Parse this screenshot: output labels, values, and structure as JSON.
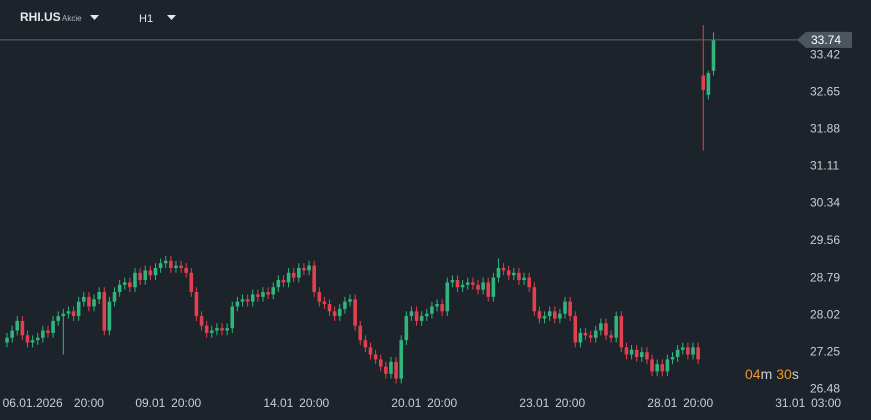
{
  "header": {
    "symbol": "RHI.US",
    "asset_type": "Akcie",
    "timeframe": "H1"
  },
  "timer": {
    "minutes": "04",
    "minutes_unit": "m",
    "seconds": "30",
    "seconds_unit": "s"
  },
  "chart_data": {
    "type": "candlestick",
    "up_color": "#2fb57d",
    "down_color": "#e2404f",
    "last_price": 33.74,
    "ylim": [
      26.36,
      34.57
    ],
    "yticks": [
      26.48,
      27.25,
      28.02,
      28.79,
      29.56,
      30.34,
      31.11,
      31.88,
      32.65,
      33.42
    ],
    "xlim": [
      -1.37,
      154.9
    ],
    "xticks": [
      {
        "value": 5,
        "label": "06.01.2026"
      },
      {
        "value": 16,
        "label": "20:00"
      },
      {
        "value": 28,
        "label": "09.01"
      },
      {
        "value": 35,
        "label": "20:00"
      },
      {
        "value": 53,
        "label": "14.01"
      },
      {
        "value": 60,
        "label": "20:00"
      },
      {
        "value": 78,
        "label": "20.01"
      },
      {
        "value": 85,
        "label": "20:00"
      },
      {
        "value": 103,
        "label": "23.01"
      },
      {
        "value": 110,
        "label": "20:00"
      },
      {
        "value": 128,
        "label": "28.01"
      },
      {
        "value": 135,
        "label": "20:00"
      },
      {
        "value": 153,
        "label": "31.01"
      },
      {
        "value": 160,
        "label": "03:00"
      }
    ],
    "grid": false,
    "open": [
      27.45,
      27.55,
      27.7,
      27.9,
      27.6,
      27.45,
      27.5,
      27.55,
      27.7,
      27.65,
      27.9,
      28.0,
      28.05,
      28.1,
      28.0,
      28.3,
      28.4,
      28.2,
      28.35,
      28.5,
      27.7,
      28.3,
      28.5,
      28.65,
      28.7,
      28.6,
      28.9,
      28.75,
      28.95,
      28.85,
      29.0,
      29.1,
      29.15,
      29.0,
      29.05,
      29.0,
      28.9,
      28.5,
      28.0,
      27.8,
      27.65,
      27.7,
      27.75,
      27.7,
      27.75,
      28.2,
      28.3,
      28.35,
      28.3,
      28.45,
      28.4,
      28.5,
      28.45,
      28.6,
      28.75,
      28.7,
      28.9,
      28.8,
      29.0,
      28.95,
      29.05,
      28.5,
      28.3,
      28.25,
      28.1,
      28.0,
      28.15,
      28.3,
      28.35,
      27.8,
      27.5,
      27.35,
      27.2,
      27.1,
      26.95,
      26.8,
      27.05,
      26.7,
      27.5,
      28.0,
      28.1,
      27.9,
      28.0,
      28.05,
      28.2,
      28.25,
      28.1,
      28.7,
      28.75,
      28.6,
      28.65,
      28.7,
      28.65,
      28.55,
      28.7,
      28.4,
      28.8,
      29.0,
      28.95,
      28.85,
      28.9,
      28.75,
      28.8,
      28.6,
      28.1,
      27.95,
      28.0,
      28.1,
      27.95,
      28.05,
      28.3,
      28.0,
      27.45,
      27.65,
      27.6,
      27.55,
      27.7,
      27.85,
      27.6,
      27.55,
      28.0,
      27.35,
      27.2,
      27.3,
      27.15,
      27.25,
      27.1,
      26.85,
      27.0,
      26.85,
      27.1,
      27.15,
      27.3,
      27.35,
      27.2,
      27.35,
      33.0,
      32.6,
      33.1
    ],
    "high": [
      27.65,
      27.8,
      28.0,
      28.0,
      27.7,
      27.6,
      27.65,
      27.8,
      27.8,
      28.0,
      28.1,
      28.15,
      28.2,
      28.2,
      28.4,
      28.5,
      28.5,
      28.45,
      28.6,
      28.6,
      28.4,
      28.6,
      28.75,
      28.8,
      28.8,
      29.0,
      29.0,
      29.05,
      29.05,
      29.1,
      29.2,
      29.25,
      29.25,
      29.15,
      29.15,
      29.1,
      29.0,
      28.6,
      28.1,
      27.9,
      27.8,
      27.85,
      27.85,
      27.85,
      28.3,
      28.4,
      28.45,
      28.45,
      28.55,
      28.55,
      28.6,
      28.6,
      28.7,
      28.85,
      28.85,
      29.0,
      29.0,
      29.1,
      29.1,
      29.15,
      29.15,
      28.6,
      28.4,
      28.35,
      28.2,
      28.25,
      28.4,
      28.45,
      28.45,
      27.9,
      27.6,
      27.45,
      27.3,
      27.2,
      27.05,
      27.15,
      27.15,
      27.6,
      28.1,
      28.2,
      28.2,
      28.1,
      28.15,
      28.3,
      28.35,
      28.35,
      28.8,
      28.85,
      28.85,
      28.75,
      28.8,
      28.8,
      28.75,
      28.8,
      28.8,
      28.9,
      29.2,
      29.1,
      29.05,
      29.0,
      29.0,
      28.9,
      28.9,
      28.7,
      28.2,
      28.1,
      28.2,
      28.2,
      28.15,
      28.4,
      28.4,
      28.1,
      27.75,
      27.75,
      27.7,
      27.8,
      27.95,
      27.95,
      27.7,
      28.1,
      28.1,
      27.45,
      27.4,
      27.4,
      27.35,
      27.35,
      27.2,
      27.1,
      27.1,
      27.2,
      27.25,
      27.4,
      27.45,
      27.45,
      27.45,
      27.45,
      34.05,
      33.1,
      33.9
    ],
    "low": [
      27.35,
      27.45,
      27.6,
      27.5,
      27.35,
      27.35,
      27.4,
      27.45,
      27.55,
      27.55,
      27.8,
      27.2,
      27.95,
      27.9,
      27.9,
      28.2,
      28.1,
      28.1,
      28.25,
      27.6,
      27.6,
      28.2,
      28.4,
      28.55,
      28.5,
      28.5,
      28.65,
      28.65,
      28.75,
      28.75,
      28.9,
      29.0,
      28.9,
      28.9,
      28.9,
      28.8,
      28.4,
      27.9,
      27.7,
      27.55,
      27.55,
      27.6,
      27.6,
      27.6,
      27.65,
      28.1,
      28.2,
      28.2,
      28.2,
      28.3,
      28.3,
      28.35,
      28.35,
      28.5,
      28.6,
      28.6,
      28.7,
      28.7,
      28.85,
      28.85,
      28.4,
      28.2,
      28.15,
      28.0,
      27.9,
      27.9,
      28.05,
      28.2,
      27.7,
      27.4,
      27.25,
      27.1,
      27.0,
      26.85,
      26.7,
      26.7,
      26.6,
      26.6,
      27.4,
      27.9,
      27.8,
      27.8,
      27.9,
      27.95,
      28.1,
      28.0,
      28.0,
      28.6,
      28.5,
      28.5,
      28.55,
      28.55,
      28.45,
      28.45,
      28.3,
      28.3,
      28.7,
      28.85,
      28.75,
      28.75,
      28.65,
      28.65,
      28.5,
      28.0,
      27.85,
      27.85,
      27.9,
      27.85,
      27.85,
      27.95,
      27.9,
      27.35,
      27.35,
      27.5,
      27.45,
      27.45,
      27.6,
      27.5,
      27.45,
      27.45,
      27.25,
      27.1,
      27.1,
      27.05,
      27.05,
      27.0,
      26.75,
      26.75,
      26.75,
      26.75,
      27.0,
      27.05,
      27.2,
      27.1,
      27.1,
      27.0,
      31.44,
      32.5,
      33.0
    ],
    "close": [
      27.55,
      27.7,
      27.9,
      27.6,
      27.45,
      27.5,
      27.55,
      27.7,
      27.65,
      27.9,
      28.0,
      28.05,
      28.1,
      28.0,
      28.3,
      28.4,
      28.2,
      28.35,
      28.5,
      27.7,
      28.3,
      28.5,
      28.65,
      28.7,
      28.6,
      28.9,
      28.75,
      28.95,
      28.85,
      29.0,
      29.1,
      29.15,
      29.0,
      29.05,
      29.0,
      28.9,
      28.5,
      28.0,
      27.8,
      27.65,
      27.7,
      27.75,
      27.7,
      27.75,
      28.2,
      28.3,
      28.35,
      28.3,
      28.45,
      28.4,
      28.5,
      28.45,
      28.6,
      28.75,
      28.7,
      28.9,
      28.8,
      29.0,
      28.95,
      29.05,
      28.5,
      28.3,
      28.25,
      28.1,
      28.0,
      28.15,
      28.3,
      28.35,
      27.8,
      27.5,
      27.35,
      27.2,
      27.1,
      26.95,
      26.8,
      27.05,
      26.7,
      27.5,
      28.0,
      28.1,
      27.9,
      28.0,
      28.05,
      28.2,
      28.25,
      28.1,
      28.7,
      28.75,
      28.6,
      28.65,
      28.7,
      28.65,
      28.55,
      28.7,
      28.4,
      28.8,
      29.0,
      28.95,
      28.85,
      28.9,
      28.75,
      28.8,
      28.6,
      28.1,
      27.95,
      28.0,
      28.1,
      27.95,
      28.05,
      28.3,
      28.0,
      27.45,
      27.65,
      27.6,
      27.55,
      27.7,
      27.85,
      27.6,
      27.55,
      28.0,
      27.35,
      27.2,
      27.3,
      27.15,
      27.25,
      27.1,
      26.85,
      27.0,
      26.85,
      27.1,
      27.15,
      27.3,
      27.35,
      27.2,
      27.35,
      27.1,
      32.7,
      33.05,
      33.74
    ]
  }
}
